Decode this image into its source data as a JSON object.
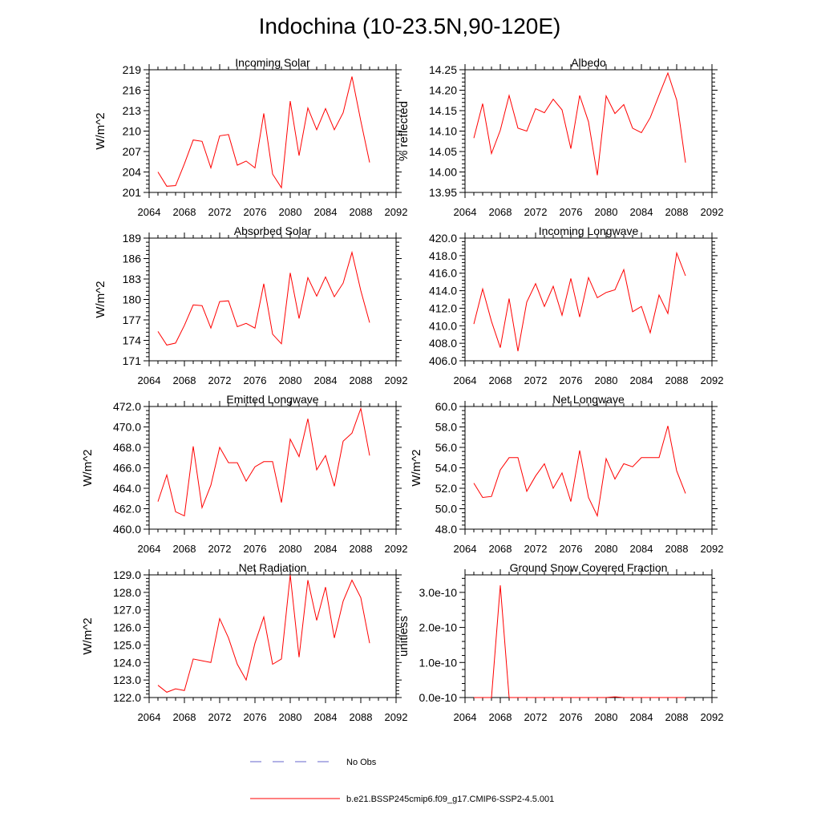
{
  "title": "Indochina (10-23.5N,90-120E)",
  "legend": {
    "obs_label": "No Obs",
    "model_label": "b.e21.BSSP245cmip6.f09_g17.CMIP6-SSP2-4.5.001",
    "obs_color": "#6666cc",
    "model_color": "#ff0000"
  },
  "chart_data": [
    {
      "type": "line",
      "title": "Incoming Solar",
      "ylabel": "W/m^2",
      "xlim": [
        2064,
        2092
      ],
      "ylim": [
        201,
        219
      ],
      "xticks": [
        "2064",
        "2068",
        "2072",
        "2076",
        "2080",
        "2084",
        "2088",
        "2092"
      ],
      "yticks": [
        "201",
        "204",
        "207",
        "210",
        "213",
        "216",
        "219"
      ],
      "series": [
        {
          "color": "#ff0000",
          "x": [
            2065,
            2066,
            2067,
            2068,
            2069,
            2070,
            2071,
            2072,
            2073,
            2074,
            2075,
            2076,
            2077,
            2078,
            2079,
            2080,
            2081,
            2082,
            2083,
            2084,
            2085,
            2086,
            2087,
            2088,
            2089
          ],
          "y": [
            204.0,
            201.9,
            202.0,
            205.2,
            208.7,
            208.5,
            204.6,
            209.3,
            209.5,
            205.0,
            205.6,
            204.6,
            212.6,
            203.7,
            201.7,
            214.4,
            206.4,
            213.4,
            210.2,
            213.3,
            210.2,
            212.7,
            218.0,
            211.5,
            205.4
          ]
        }
      ]
    },
    {
      "type": "line",
      "title": "Albedo",
      "ylabel": "% reflected",
      "xlim": [
        2064,
        2092
      ],
      "ylim": [
        13.95,
        14.25
      ],
      "xticks": [
        "2064",
        "2068",
        "2072",
        "2076",
        "2080",
        "2084",
        "2088",
        "2092"
      ],
      "yticks": [
        "13.95",
        "14.00",
        "14.05",
        "14.10",
        "14.15",
        "14.20",
        "14.25"
      ],
      "series": [
        {
          "color": "#ff0000",
          "x": [
            2065,
            2066,
            2067,
            2068,
            2069,
            2070,
            2071,
            2072,
            2073,
            2074,
            2075,
            2076,
            2077,
            2078,
            2079,
            2080,
            2081,
            2082,
            2083,
            2084,
            2085,
            2086,
            2087,
            2088,
            2089
          ],
          "y": [
            14.083,
            14.167,
            14.045,
            14.102,
            14.187,
            14.107,
            14.1,
            14.155,
            14.145,
            14.178,
            14.152,
            14.057,
            14.187,
            14.123,
            13.992,
            14.186,
            14.143,
            14.165,
            14.107,
            14.096,
            14.133,
            14.188,
            14.242,
            14.176,
            14.023
          ]
        }
      ]
    },
    {
      "type": "line",
      "title": "Absorbed Solar",
      "ylabel": "W/m^2",
      "xlim": [
        2064,
        2092
      ],
      "ylim": [
        171,
        189
      ],
      "xticks": [
        "2064",
        "2068",
        "2072",
        "2076",
        "2080",
        "2084",
        "2088",
        "2092"
      ],
      "yticks": [
        "171",
        "174",
        "177",
        "180",
        "183",
        "186",
        "189"
      ],
      "series": [
        {
          "color": "#ff0000",
          "x": [
            2065,
            2066,
            2067,
            2068,
            2069,
            2070,
            2071,
            2072,
            2073,
            2074,
            2075,
            2076,
            2077,
            2078,
            2079,
            2080,
            2081,
            2082,
            2083,
            2084,
            2085,
            2086,
            2087,
            2088,
            2089
          ],
          "y": [
            175.3,
            173.3,
            173.6,
            176.2,
            179.2,
            179.1,
            175.8,
            179.7,
            179.8,
            176.0,
            176.5,
            175.8,
            182.3,
            174.9,
            173.5,
            183.9,
            177.2,
            183.2,
            180.5,
            183.3,
            180.4,
            182.4,
            186.9,
            181.3,
            176.6
          ]
        }
      ]
    },
    {
      "type": "line",
      "title": "Incoming Longwave",
      "ylabel": "",
      "xlim": [
        2064,
        2092
      ],
      "ylim": [
        406.0,
        420.0
      ],
      "xticks": [
        "2064",
        "2068",
        "2072",
        "2076",
        "2080",
        "2084",
        "2088",
        "2092"
      ],
      "yticks": [
        "406.0",
        "408.0",
        "410.0",
        "412.0",
        "414.0",
        "416.0",
        "418.0",
        "420.0"
      ],
      "series": [
        {
          "color": "#ff0000",
          "x": [
            2065,
            2066,
            2067,
            2068,
            2069,
            2070,
            2071,
            2072,
            2073,
            2074,
            2075,
            2076,
            2077,
            2078,
            2079,
            2080,
            2081,
            2082,
            2083,
            2084,
            2085,
            2086,
            2087,
            2088,
            2089
          ],
          "y": [
            410.2,
            414.2,
            410.5,
            407.5,
            413.1,
            407.1,
            412.7,
            414.8,
            412.2,
            414.5,
            411.2,
            415.4,
            411.0,
            415.5,
            413.2,
            413.8,
            414.1,
            416.4,
            411.6,
            412.2,
            409.2,
            413.5,
            411.4,
            418.3,
            415.7
          ]
        }
      ]
    },
    {
      "type": "line",
      "title": "Emitted Longwave",
      "ylabel": "W/m^2",
      "xlim": [
        2064,
        2092
      ],
      "ylim": [
        460.0,
        472.0
      ],
      "xticks": [
        "2064",
        "2068",
        "2072",
        "2076",
        "2080",
        "2084",
        "2088",
        "2092"
      ],
      "yticks": [
        "460.0",
        "462.0",
        "464.0",
        "466.0",
        "468.0",
        "470.0",
        "472.0"
      ],
      "series": [
        {
          "color": "#ff0000",
          "x": [
            2065,
            2066,
            2067,
            2068,
            2069,
            2070,
            2071,
            2072,
            2073,
            2074,
            2075,
            2076,
            2077,
            2078,
            2079,
            2080,
            2081,
            2082,
            2083,
            2084,
            2085,
            2086,
            2087,
            2088,
            2089
          ],
          "y": [
            462.7,
            465.3,
            461.7,
            461.3,
            468.1,
            462.1,
            464.3,
            468.0,
            466.5,
            466.5,
            464.7,
            466.1,
            466.6,
            466.6,
            462.6,
            468.8,
            467.1,
            470.8,
            465.8,
            467.2,
            464.2,
            468.6,
            469.4,
            471.8,
            467.2
          ]
        }
      ]
    },
    {
      "type": "line",
      "title": "Net Longwave",
      "ylabel": "W/m^2",
      "xlim": [
        2064,
        2092
      ],
      "ylim": [
        48.0,
        60.0
      ],
      "xticks": [
        "2064",
        "2068",
        "2072",
        "2076",
        "2080",
        "2084",
        "2088",
        "2092"
      ],
      "yticks": [
        "48.0",
        "50.0",
        "52.0",
        "54.0",
        "56.0",
        "58.0",
        "60.0"
      ],
      "series": [
        {
          "color": "#ff0000",
          "x": [
            2065,
            2066,
            2067,
            2068,
            2069,
            2070,
            2071,
            2072,
            2073,
            2074,
            2075,
            2076,
            2077,
            2078,
            2079,
            2080,
            2081,
            2082,
            2083,
            2084,
            2085,
            2086,
            2087,
            2088,
            2089
          ],
          "y": [
            52.5,
            51.1,
            51.2,
            53.8,
            55.0,
            55.0,
            51.7,
            53.2,
            54.4,
            52.0,
            53.5,
            50.7,
            55.7,
            51.1,
            49.3,
            54.9,
            52.9,
            54.4,
            54.1,
            55.0,
            55.0,
            55.0,
            58.1,
            53.7,
            51.5
          ]
        }
      ]
    },
    {
      "type": "line",
      "title": "Net Radiation",
      "ylabel": "W/m^2",
      "xlim": [
        2064,
        2092
      ],
      "ylim": [
        122.0,
        129.0
      ],
      "xticks": [
        "2064",
        "2068",
        "2072",
        "2076",
        "2080",
        "2084",
        "2088",
        "2092"
      ],
      "yticks": [
        "122.0",
        "123.0",
        "124.0",
        "125.0",
        "126.0",
        "127.0",
        "128.0",
        "129.0"
      ],
      "series": [
        {
          "color": "#ff0000",
          "x": [
            2065,
            2066,
            2067,
            2068,
            2069,
            2070,
            2071,
            2072,
            2073,
            2074,
            2075,
            2076,
            2077,
            2078,
            2079,
            2080,
            2081,
            2082,
            2083,
            2084,
            2085,
            2086,
            2087,
            2088,
            2089
          ],
          "y": [
            122.7,
            122.3,
            122.5,
            122.4,
            124.2,
            124.1,
            124.0,
            126.5,
            125.4,
            123.9,
            123.0,
            125.1,
            126.6,
            123.9,
            124.2,
            129.0,
            124.3,
            128.7,
            126.4,
            128.3,
            125.4,
            127.5,
            128.7,
            127.7,
            125.1
          ]
        }
      ]
    },
    {
      "type": "line",
      "title": "Ground Snow Covered Fraction",
      "ylabel": "unitless",
      "xlim": [
        2064,
        2092
      ],
      "ylim": [
        0,
        3.5e-10
      ],
      "xticks": [
        "2064",
        "2068",
        "2072",
        "2076",
        "2080",
        "2084",
        "2088",
        "2092"
      ],
      "yticks": [
        "0.0e-10",
        "1.0e-10",
        "2.0e-10",
        "3.0e-10"
      ],
      "series": [
        {
          "color": "#ff0000",
          "x": [
            2065,
            2066,
            2067,
            2068,
            2069,
            2070,
            2071,
            2072,
            2073,
            2074,
            2075,
            2076,
            2077,
            2078,
            2079,
            2080,
            2081,
            2082,
            2083,
            2084,
            2085,
            2086,
            2087,
            2088,
            2089
          ],
          "y": [
            0,
            0,
            0,
            3.2e-10,
            0,
            0,
            0,
            0,
            0,
            0,
            0,
            0,
            0,
            0,
            0,
            0,
            2e-12,
            0,
            0,
            0,
            0,
            0,
            0,
            0,
            0
          ]
        }
      ]
    }
  ]
}
